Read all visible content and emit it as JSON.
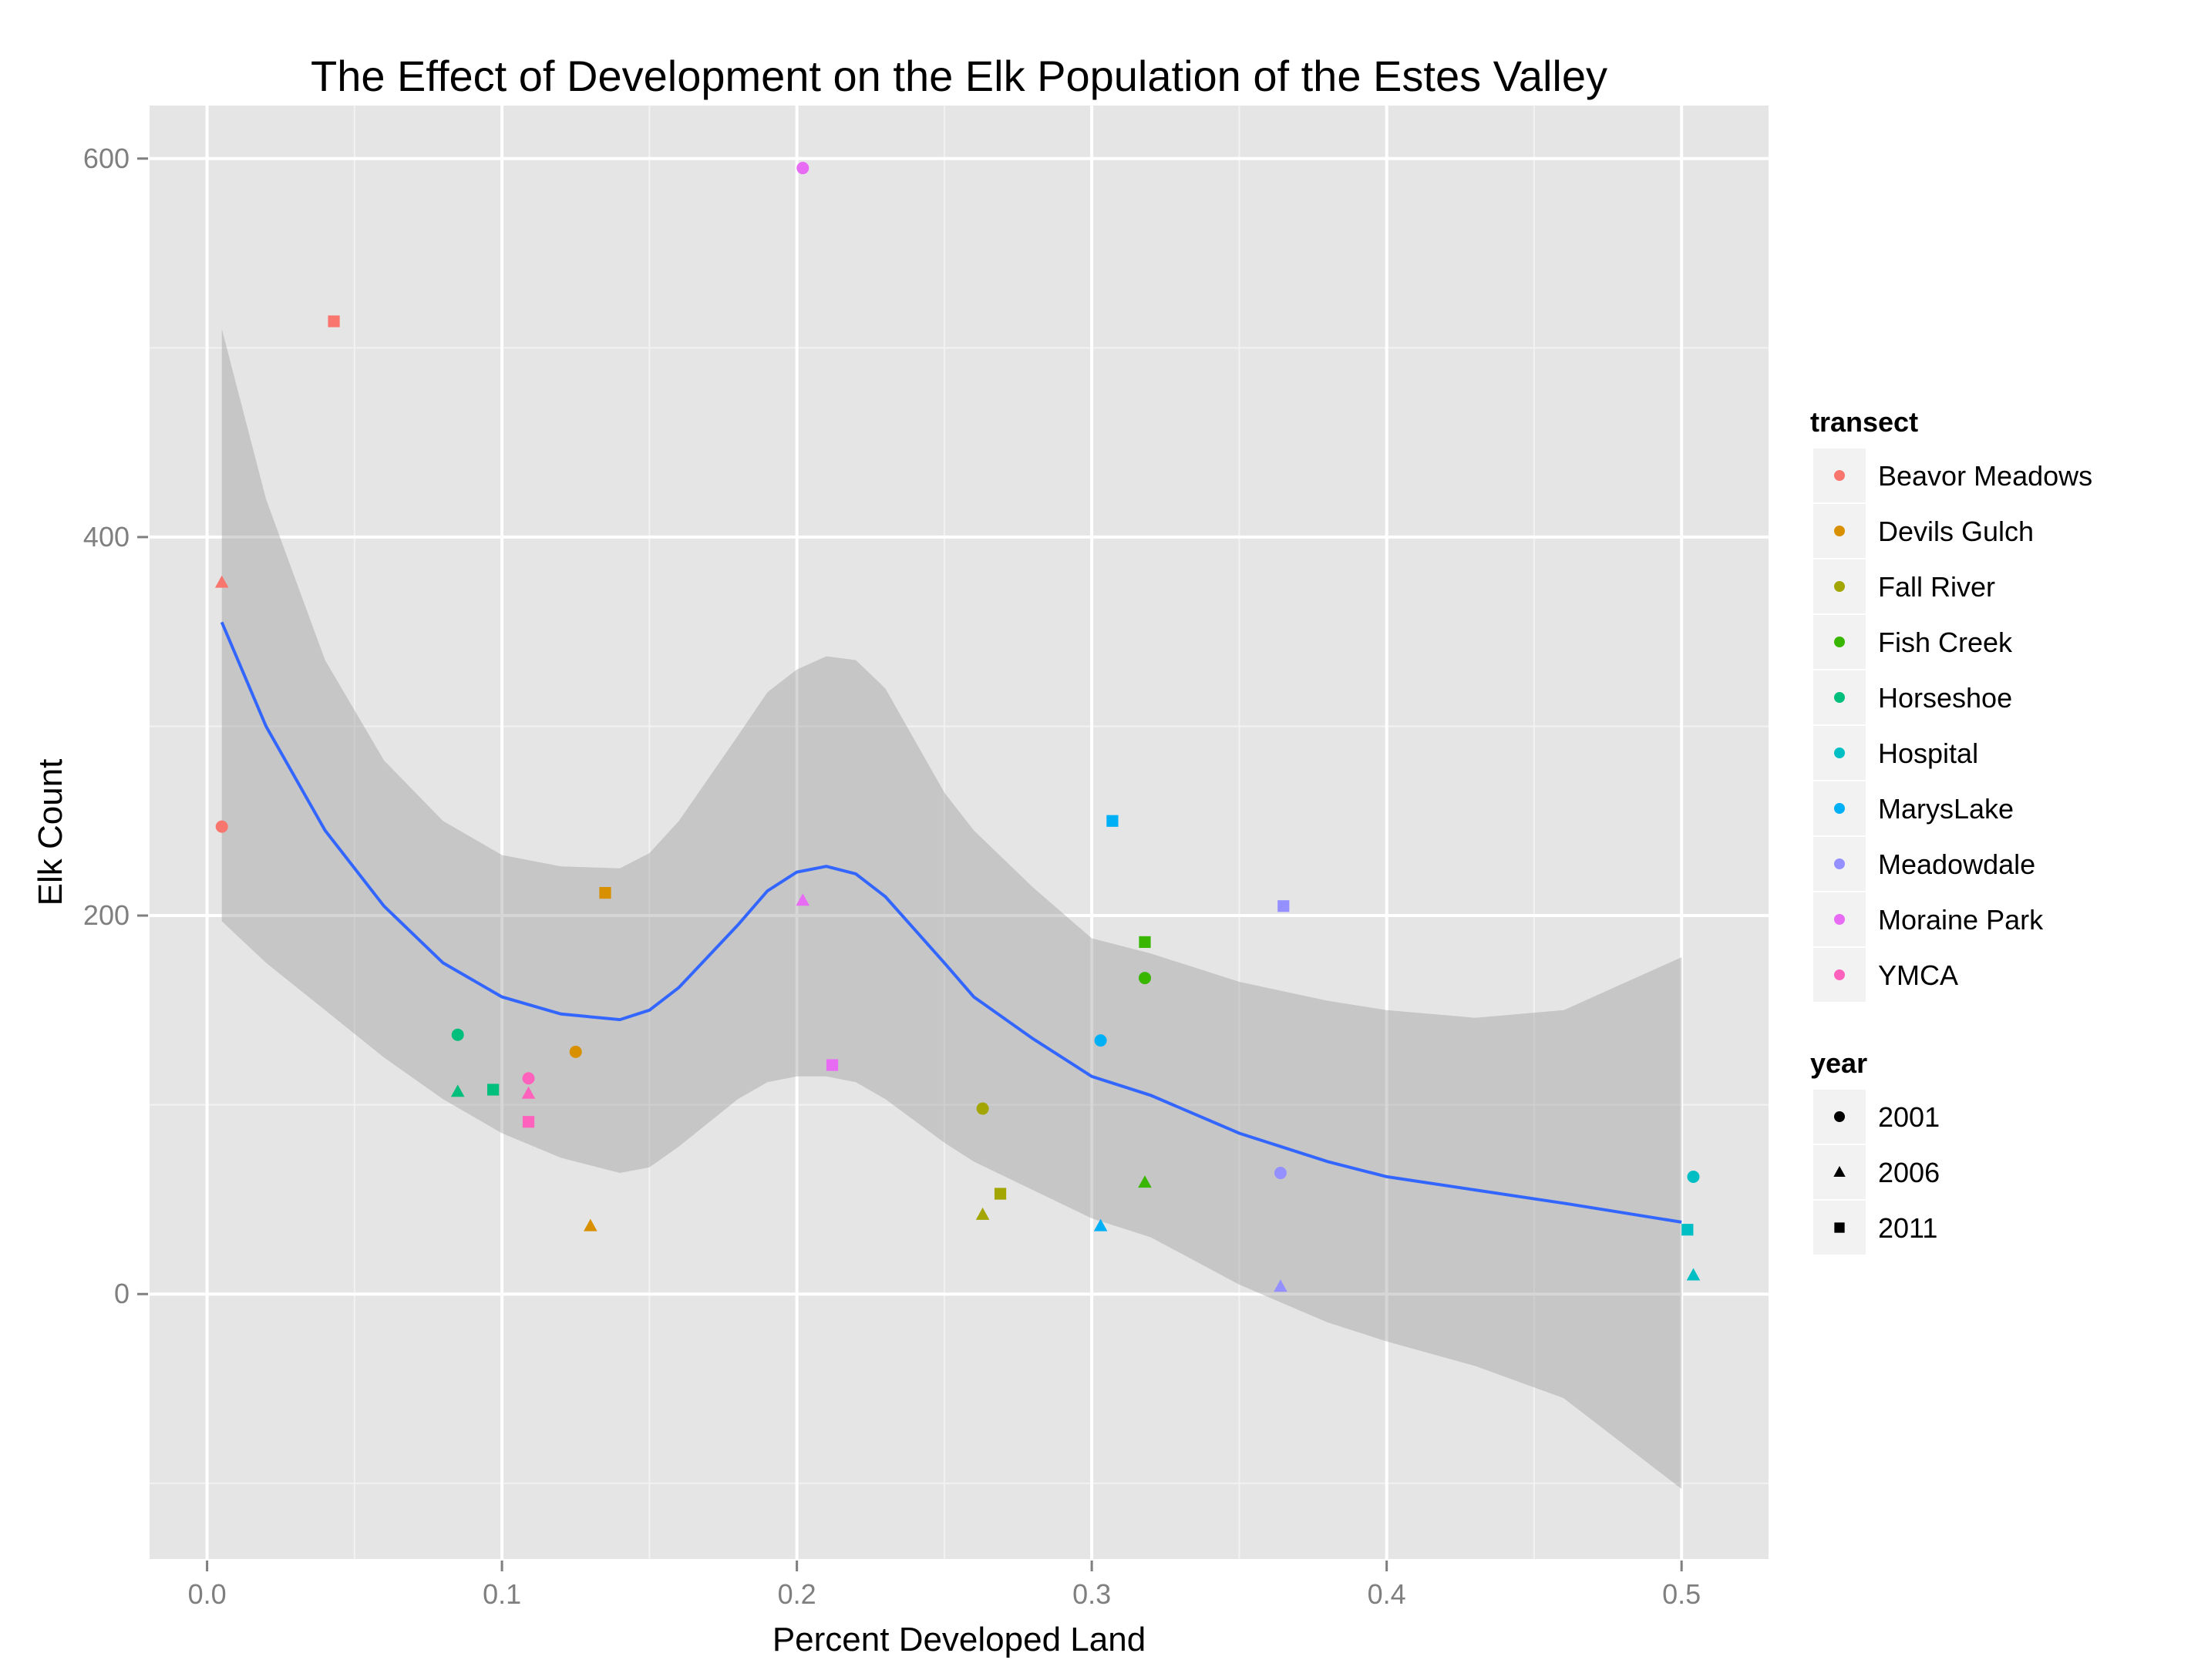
{
  "chart_data": {
    "type": "scatter",
    "title": "The Effect of Development on the Elk Population of the Estes Valley",
    "xlabel": "Percent Developed Land",
    "ylabel": "Elk Count",
    "xlim": [
      -0.0195,
      0.5295
    ],
    "ylim": [
      -140,
      628
    ],
    "x_ticks": [
      0.0,
      0.1,
      0.2,
      0.3,
      0.4,
      0.5
    ],
    "x_tick_labels": [
      "0.0",
      "0.1",
      "0.2",
      "0.3",
      "0.4",
      "0.5"
    ],
    "y_ticks": [
      0,
      200,
      400,
      600
    ],
    "y_tick_labels": [
      "0",
      "200",
      "400",
      "600"
    ],
    "grid": true,
    "panel_background": "#E5E5E5",
    "legend_position": "right",
    "legends": [
      {
        "title": "transect",
        "entries": [
          {
            "label": "Beavor Meadows",
            "color": "#F8766D"
          },
          {
            "label": "Devils Gulch",
            "color": "#D89000"
          },
          {
            "label": "Fall River",
            "color": "#A3A500"
          },
          {
            "label": "Fish Creek",
            "color": "#39B600"
          },
          {
            "label": "Horseshoe",
            "color": "#00BF7D"
          },
          {
            "label": "Hospital",
            "color": "#00BFC4"
          },
          {
            "label": "MarysLake",
            "color": "#00B0F6"
          },
          {
            "label": "Meadowdale",
            "color": "#9590FF"
          },
          {
            "label": "Moraine Park",
            "color": "#E76BF3"
          },
          {
            "label": "YMCA",
            "color": "#FF62BC"
          }
        ]
      },
      {
        "title": "year",
        "entries": [
          {
            "label": "2001",
            "shape": "circle"
          },
          {
            "label": "2006",
            "shape": "triangle"
          },
          {
            "label": "2011",
            "shape": "square"
          }
        ]
      }
    ],
    "points": [
      {
        "transect": "Beavor Meadows",
        "year": "2001",
        "x": 0.005,
        "y": 247
      },
      {
        "transect": "Beavor Meadows",
        "year": "2006",
        "x": 0.005,
        "y": 376
      },
      {
        "transect": "Beavor Meadows",
        "year": "2011",
        "x": 0.043,
        "y": 514
      },
      {
        "transect": "Devils Gulch",
        "year": "2001",
        "x": 0.125,
        "y": 128
      },
      {
        "transect": "Devils Gulch",
        "year": "2006",
        "x": 0.13,
        "y": 36
      },
      {
        "transect": "Devils Gulch",
        "year": "2011",
        "x": 0.135,
        "y": 212
      },
      {
        "transect": "Fall River",
        "year": "2001",
        "x": 0.263,
        "y": 98
      },
      {
        "transect": "Fall River",
        "year": "2006",
        "x": 0.263,
        "y": 42
      },
      {
        "transect": "Fall River",
        "year": "2011",
        "x": 0.269,
        "y": 53
      },
      {
        "transect": "Fish Creek",
        "year": "2001",
        "x": 0.318,
        "y": 167
      },
      {
        "transect": "Fish Creek",
        "year": "2006",
        "x": 0.318,
        "y": 59
      },
      {
        "transect": "Fish Creek",
        "year": "2011",
        "x": 0.318,
        "y": 186
      },
      {
        "transect": "Horseshoe",
        "year": "2001",
        "x": 0.085,
        "y": 137
      },
      {
        "transect": "Horseshoe",
        "year": "2006",
        "x": 0.085,
        "y": 107
      },
      {
        "transect": "Horseshoe",
        "year": "2011",
        "x": 0.097,
        "y": 108
      },
      {
        "transect": "Hospital",
        "year": "2001",
        "x": 0.504,
        "y": 62
      },
      {
        "transect": "Hospital",
        "year": "2006",
        "x": 0.504,
        "y": 10
      },
      {
        "transect": "Hospital",
        "year": "2011",
        "x": 0.502,
        "y": 34
      },
      {
        "transect": "MarysLake",
        "year": "2001",
        "x": 0.303,
        "y": 134
      },
      {
        "transect": "MarysLake",
        "year": "2006",
        "x": 0.303,
        "y": 36
      },
      {
        "transect": "MarysLake",
        "year": "2011",
        "x": 0.307,
        "y": 250
      },
      {
        "transect": "Meadowdale",
        "year": "2001",
        "x": 0.364,
        "y": 64
      },
      {
        "transect": "Meadowdale",
        "year": "2006",
        "x": 0.364,
        "y": 4
      },
      {
        "transect": "Meadowdale",
        "year": "2011",
        "x": 0.365,
        "y": 205
      },
      {
        "transect": "Moraine Park",
        "year": "2001",
        "x": 0.202,
        "y": 595
      },
      {
        "transect": "Moraine Park",
        "year": "2006",
        "x": 0.202,
        "y": 208
      },
      {
        "transect": "Moraine Park",
        "year": "2011",
        "x": 0.212,
        "y": 121
      },
      {
        "transect": "YMCA",
        "year": "2001",
        "x": 0.109,
        "y": 114
      },
      {
        "transect": "YMCA",
        "year": "2006",
        "x": 0.109,
        "y": 106
      },
      {
        "transect": "YMCA",
        "year": "2011",
        "x": 0.109,
        "y": 91
      }
    ],
    "smooth": {
      "method": "loess",
      "color": "#3366FF",
      "band_color": "#999999",
      "x": [
        0.005,
        0.02,
        0.04,
        0.06,
        0.08,
        0.1,
        0.12,
        0.14,
        0.15,
        0.16,
        0.18,
        0.19,
        0.2,
        0.21,
        0.22,
        0.23,
        0.25,
        0.26,
        0.28,
        0.3,
        0.32,
        0.35,
        0.38,
        0.4,
        0.43,
        0.46,
        0.5
      ],
      "y": [
        355,
        300,
        245,
        205,
        175,
        157,
        148,
        145,
        150,
        162,
        195,
        213,
        223,
        226,
        222,
        210,
        175,
        157,
        135,
        115,
        105,
        85,
        70,
        62,
        55,
        48,
        38
      ],
      "lower": [
        197,
        175,
        150,
        125,
        103,
        85,
        72,
        64,
        67,
        78,
        103,
        112,
        115,
        115,
        112,
        103,
        80,
        70,
        55,
        40,
        30,
        5,
        -15,
        -25,
        -38,
        -55,
        -103
      ],
      "upper": [
        510,
        420,
        335,
        282,
        250,
        232,
        226,
        225,
        233,
        250,
        295,
        318,
        330,
        337,
        335,
        320,
        265,
        245,
        215,
        188,
        180,
        165,
        155,
        150,
        146,
        150,
        178
      ]
    }
  }
}
